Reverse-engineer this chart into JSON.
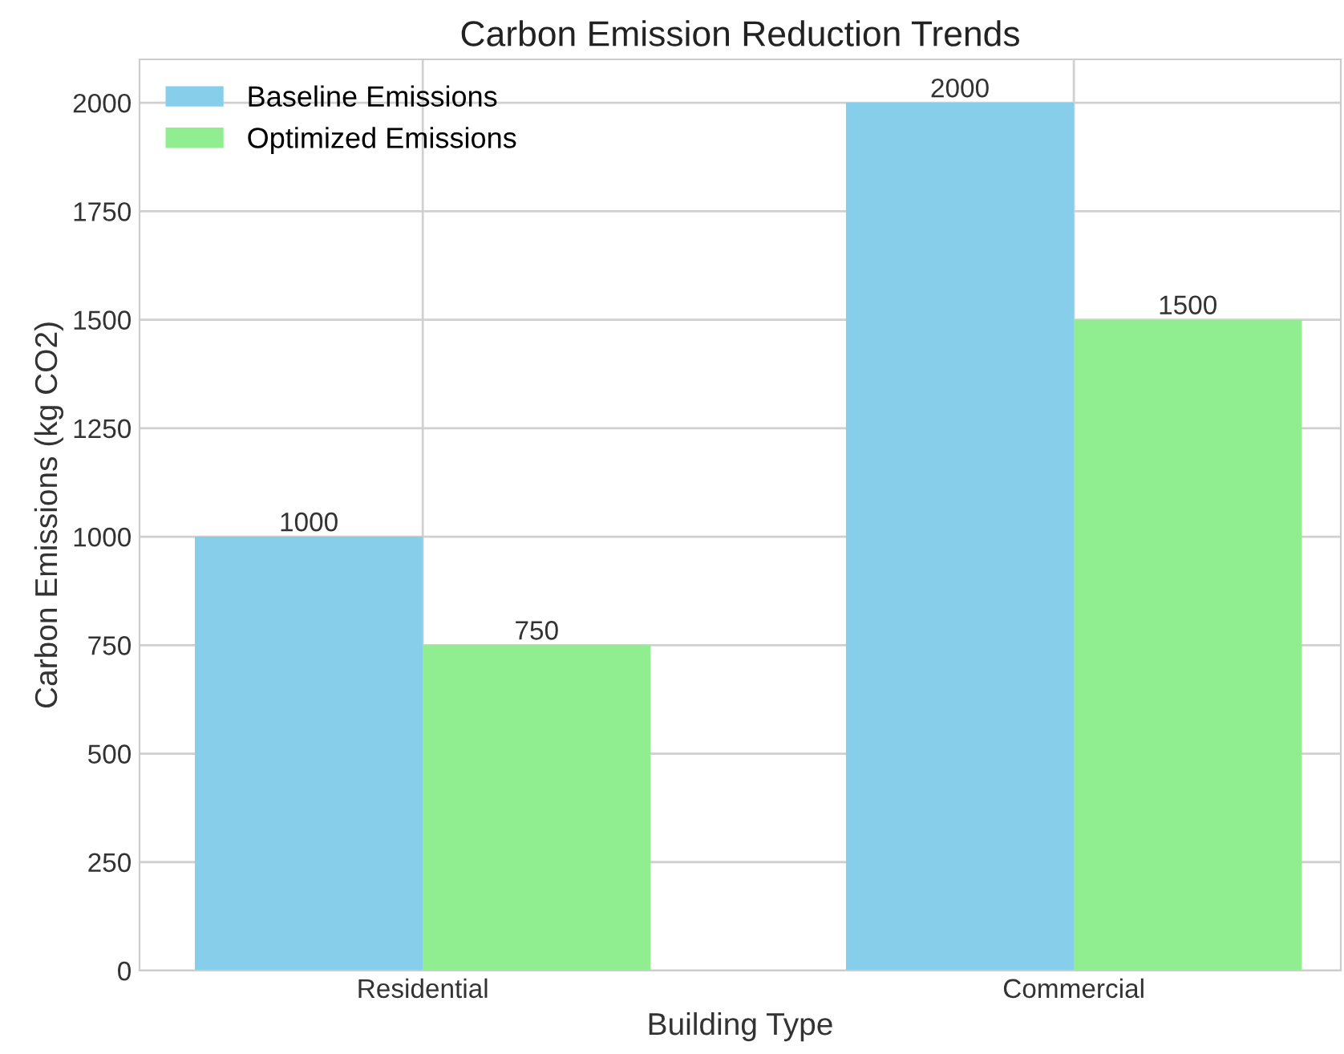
{
  "chart_data": {
    "type": "bar",
    "title": "Carbon Emission Reduction Trends",
    "xlabel": "Building Type",
    "ylabel": "Carbon Emissions (kg CO2)",
    "categories": [
      "Residential",
      "Commercial"
    ],
    "series": [
      {
        "name": "Baseline Emissions",
        "color": "#87ceeb",
        "values": [
          1000,
          2000
        ]
      },
      {
        "name": "Optimized Emissions",
        "color": "#90ee90",
        "values": [
          750,
          1500
        ]
      }
    ],
    "ylim": [
      0,
      2100
    ],
    "yticks": [
      0,
      250,
      500,
      750,
      1000,
      1250,
      1500,
      1750,
      2000
    ],
    "grid": true,
    "legend": "top left",
    "data_labels": true
  }
}
